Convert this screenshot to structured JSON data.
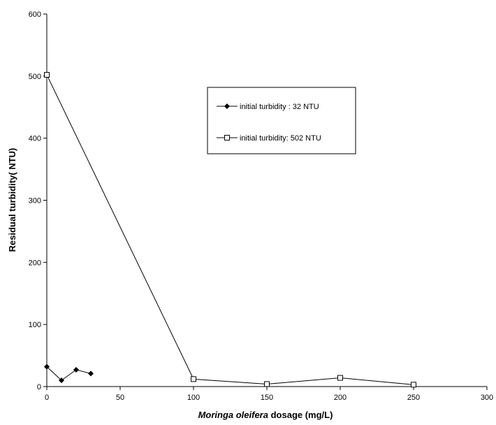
{
  "chart_data": {
    "type": "line",
    "xlabel_italic": "Moringa oleifera",
    "xlabel_rest": " dosage (mg/L)",
    "ylabel": "Residual turbidity( NTU)",
    "xlim": [
      0,
      300
    ],
    "ylim": [
      0,
      600
    ],
    "xticks": [
      0,
      50,
      100,
      150,
      200,
      250,
      300
    ],
    "yticks": [
      0,
      100,
      200,
      300,
      400,
      500,
      600
    ],
    "grid": false,
    "legend_position": "upper-center-right",
    "series": [
      {
        "name": "initial turbidity : 32 NTU",
        "marker": "diamond-filled",
        "color": "#000000",
        "x": [
          0,
          10,
          20,
          30
        ],
        "y": [
          32,
          10,
          27,
          21
        ]
      },
      {
        "name": "initial turbidity: 502 NTU",
        "marker": "square-open",
        "color": "#000000",
        "x": [
          0,
          100,
          150,
          200,
          250
        ],
        "y": [
          502,
          12,
          4,
          14,
          3
        ]
      }
    ]
  }
}
